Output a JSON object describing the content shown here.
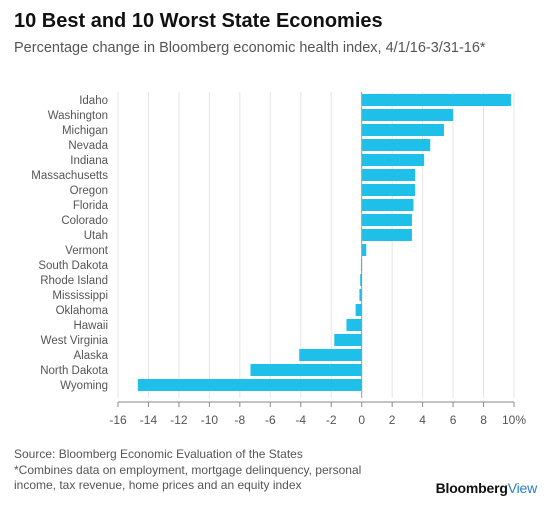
{
  "header": {
    "title": "10 Best and 10 Worst State Economies",
    "subtitle": "Percentage change in Bloomberg economic health index, 4/1/16-3/31-16*"
  },
  "footer": {
    "source": "Source: Bloomberg Economic Evaluation of the States",
    "note_line1": "*Combines data on employment, mortgage delinquency, personal",
    "note_line2": "income, tax revenue, home prices and an equity index",
    "brand_main": "Bloomberg",
    "brand_accent": "View"
  },
  "colors": {
    "bar": "#1ec0ea",
    "grid": "#e6e6e6",
    "zero": "#999999"
  },
  "chart_data": {
    "type": "bar",
    "orientation": "horizontal",
    "categories": [
      "Idaho",
      "Washington",
      "Michigan",
      "Nevada",
      "Indiana",
      "Massachusetts",
      "Oregon",
      "Florida",
      "Colorado",
      "Utah",
      "Vermont",
      "South Dakota",
      "Rhode Island",
      "Mississippi",
      "Oklahoma",
      "Hawaii",
      "West Virginia",
      "Alaska",
      "North Dakota",
      "Wyoming"
    ],
    "values": [
      9.8,
      6.0,
      5.4,
      4.5,
      4.1,
      3.5,
      3.5,
      3.4,
      3.3,
      3.3,
      0.3,
      -0.05,
      -0.1,
      -0.15,
      -0.4,
      -1.0,
      -1.8,
      -4.1,
      -7.3,
      -14.7
    ],
    "xlim": [
      -16,
      10
    ],
    "xticks": [
      -16,
      -14,
      -12,
      -10,
      -8,
      -6,
      -4,
      -2,
      0,
      2,
      4,
      6,
      8,
      10
    ],
    "xtick_labels": [
      "-16",
      "-14",
      "-12",
      "-10",
      "-8",
      "-6",
      "-4",
      "-2",
      "0",
      "2",
      "4",
      "6",
      "8",
      "10%"
    ],
    "grid": true
  }
}
